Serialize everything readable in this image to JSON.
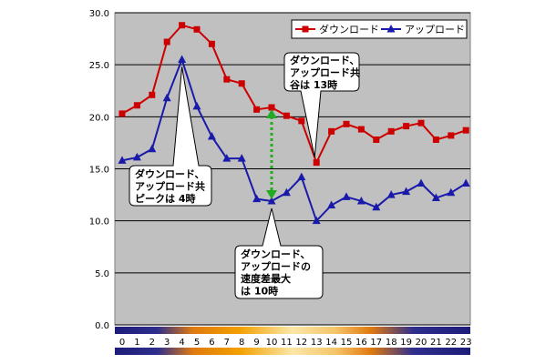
{
  "chart_data": {
    "type": "line",
    "title": "",
    "xlabel": "",
    "ylabel": "",
    "x": [
      0,
      1,
      2,
      3,
      4,
      5,
      6,
      7,
      8,
      9,
      10,
      11,
      12,
      13,
      14,
      15,
      16,
      17,
      18,
      19,
      20,
      21,
      22,
      23
    ],
    "x_tick_labels": [
      "0",
      "1",
      "2",
      "3",
      "4",
      "5",
      "6",
      "7",
      "8",
      "9",
      "10",
      "11",
      "12",
      "13",
      "14",
      "15",
      "16",
      "17",
      "18",
      "19",
      "20",
      "21",
      "22",
      "23"
    ],
    "ylim": [
      0,
      30
    ],
    "y_ticks": [
      0,
      5,
      10,
      15,
      20,
      25,
      30
    ],
    "y_tick_labels": [
      "0.0",
      "5.0",
      "10.0",
      "15.0",
      "20.0",
      "25.0",
      "30.0"
    ],
    "grid": "horizontal",
    "legend_position": "top-right",
    "series": [
      {
        "name": "ダウンロード",
        "color": "#cc0000",
        "marker": "square",
        "values": [
          20.3,
          21.1,
          22.1,
          27.2,
          28.8,
          28.4,
          27.0,
          23.6,
          23.2,
          20.7,
          20.9,
          20.1,
          19.6,
          15.6,
          18.6,
          19.3,
          18.8,
          17.8,
          18.6,
          19.1,
          19.4,
          17.8,
          18.2,
          18.7
        ]
      },
      {
        "name": "アップロード",
        "color": "#1a1aaa",
        "marker": "triangle",
        "values": [
          15.8,
          16.1,
          16.9,
          21.8,
          25.5,
          21.0,
          18.1,
          16.0,
          16.0,
          12.1,
          11.9,
          12.7,
          14.2,
          10.0,
          11.5,
          12.3,
          11.9,
          11.3,
          12.5,
          12.8,
          13.6,
          12.2,
          12.7,
          13.6
        ]
      }
    ],
    "annotations": [
      {
        "name": "callout-peak",
        "lines": [
          "ダウンロード、",
          "アップロード共",
          "ピークは 4時"
        ],
        "target_x": 4
      },
      {
        "name": "callout-low",
        "lines": [
          "ダウンロード、",
          "アップロード共",
          "谷は 13時"
        ],
        "target_x": 13
      },
      {
        "name": "callout-gap",
        "lines": [
          "ダウンロード、",
          "アップロードの",
          "速度差最大",
          "は 10時"
        ],
        "target_x": 10
      }
    ],
    "gap_arrow": {
      "x": 10,
      "from_series": 1,
      "to_series": 0,
      "color": "#22aa22"
    },
    "plot_background": "#c0c0c0"
  }
}
